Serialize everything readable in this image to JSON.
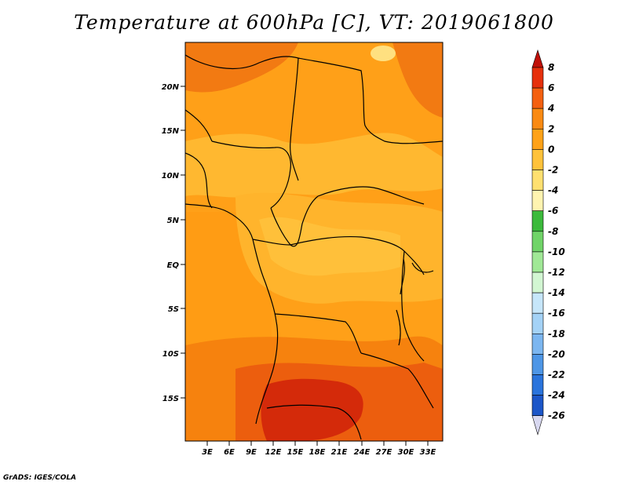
{
  "title": "Temperature at 600hPa [C], VT: 2019061800",
  "credit": "GrADS: IGES/COLA",
  "map": {
    "region": "Central Africa",
    "lat_ticks": [
      "20N",
      "15N",
      "10N",
      "5N",
      "EQ",
      "5S",
      "10S",
      "15S"
    ],
    "lon_ticks": [
      "3E",
      "6E",
      "9E",
      "12E",
      "15E",
      "18E",
      "21E",
      "24E",
      "27E",
      "30E",
      "33E"
    ],
    "zones": [
      {
        "name": "north-west-warm",
        "value": 5
      },
      {
        "name": "north-east-warm",
        "value": 5
      },
      {
        "name": "sahel-band",
        "value": 2
      },
      {
        "name": "central-basin",
        "value": 1
      },
      {
        "name": "west-coast",
        "value": 3
      },
      {
        "name": "southern-warm",
        "value": 5
      },
      {
        "name": "southern-core",
        "value": 7
      },
      {
        "name": "northern-cool-spot",
        "value": -1
      }
    ]
  },
  "colorbar": {
    "labels": [
      "8",
      "6",
      "4",
      "2",
      "0",
      "-2",
      "-4",
      "-6",
      "-8",
      "-10",
      "-12",
      "-14",
      "-16",
      "-18",
      "-20",
      "-22",
      "-24",
      "-26"
    ],
    "colors": [
      "#d8d8f0",
      "#0c0c6a",
      "#1438a0",
      "#1c58c8",
      "#2a6ede",
      "#3c86ea",
      "#5a9ff0",
      "#7ab8f5",
      "#9ccff9",
      "#c0e6fb",
      "#d8f5e0",
      "#a8eea0",
      "#78dc6c",
      "#40c040",
      "#fff0a0",
      "#ffd860",
      "#ffb640",
      "#ffa020",
      "#ff8410",
      "#f45c10",
      "#e02c10",
      "#c01008"
    ],
    "top_arrow_color": "#c01008",
    "bottom_arrow_color": "#d8d8f0"
  },
  "colors": {
    "c_m2_0": "#fff0a0",
    "c_0_2": "#ffcf48",
    "c_2_4": "#ffb028",
    "c_4_6": "#ff9a18",
    "c_6_8": "#f27010",
    "c_8_plus": "#e03810",
    "c_hot": "#c81c08"
  }
}
